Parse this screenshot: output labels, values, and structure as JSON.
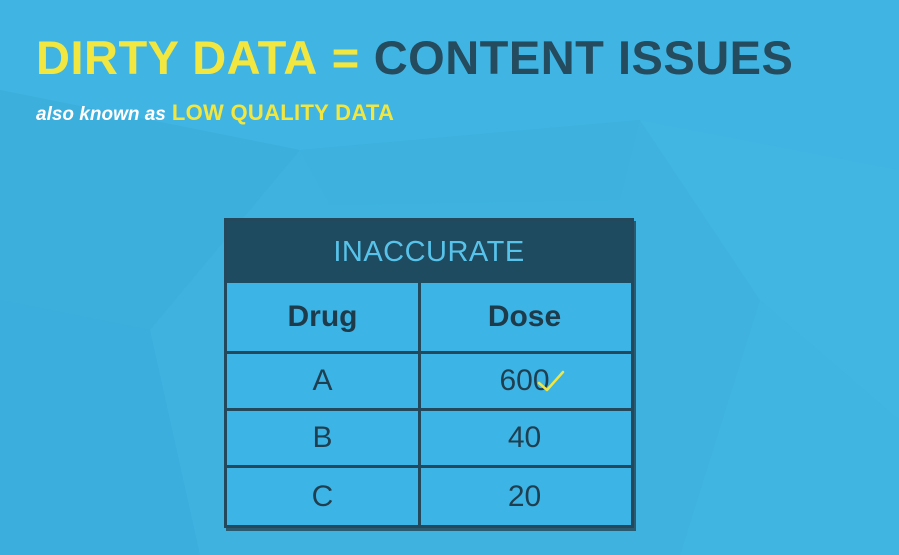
{
  "colors": {
    "background": "#3fb2e0",
    "accent_yellow": "#f2e640",
    "title_dark": "#244b5e",
    "table_header_bg": "#1f4b61",
    "table_header_text": "#58c3ea",
    "table_border": "#24485b"
  },
  "title": {
    "left": "DIRTY DATA",
    "equals": "=",
    "right": "CONTENT ISSUES"
  },
  "subtitle": {
    "prefix": "also known as",
    "highlight": "LOW QUALITY DATA"
  },
  "table": {
    "header": "INACCURATE",
    "columns": [
      "Drug",
      "Dose"
    ],
    "rows": [
      {
        "drug": "A",
        "dose": "600"
      },
      {
        "drug": "B",
        "dose": "40"
      },
      {
        "drug": "C",
        "dose": "20"
      }
    ]
  },
  "icons": {
    "annotation": "check-mark-icon"
  }
}
